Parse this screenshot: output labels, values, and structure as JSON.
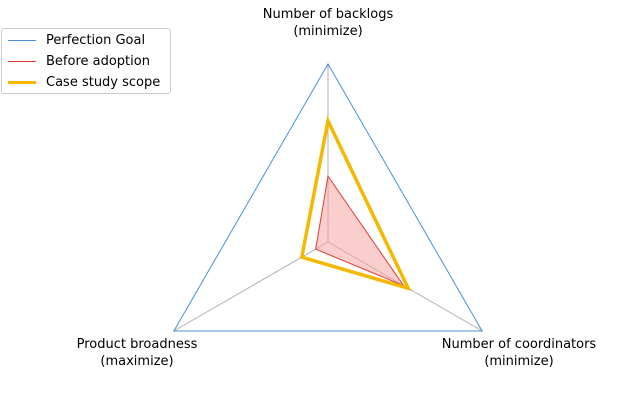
{
  "chart_data": {
    "type": "radar",
    "axes": [
      {
        "label_line1": "Number of backlogs",
        "label_line2": "(minimize)"
      },
      {
        "label_line1": "Number of coordinators",
        "label_line2": "(minimize)"
      },
      {
        "label_line1": "Product broadness",
        "label_line2": "(maximize)"
      }
    ],
    "range": [
      0,
      1
    ],
    "series": [
      {
        "name": "Perfection Goal",
        "values": [
          1.0,
          1.0,
          1.0
        ],
        "color": "#4a90d9",
        "fill": false
      },
      {
        "name": "Before adoption",
        "values": [
          0.37,
          0.49,
          0.08
        ],
        "color": "#e03c31",
        "fill": true,
        "fill_color": "#f7a6a6"
      },
      {
        "name": "Case study scope",
        "values": [
          0.68,
          0.52,
          0.17
        ],
        "color": "#f5b800",
        "fill": false
      }
    ],
    "legend_position": "top-left"
  }
}
